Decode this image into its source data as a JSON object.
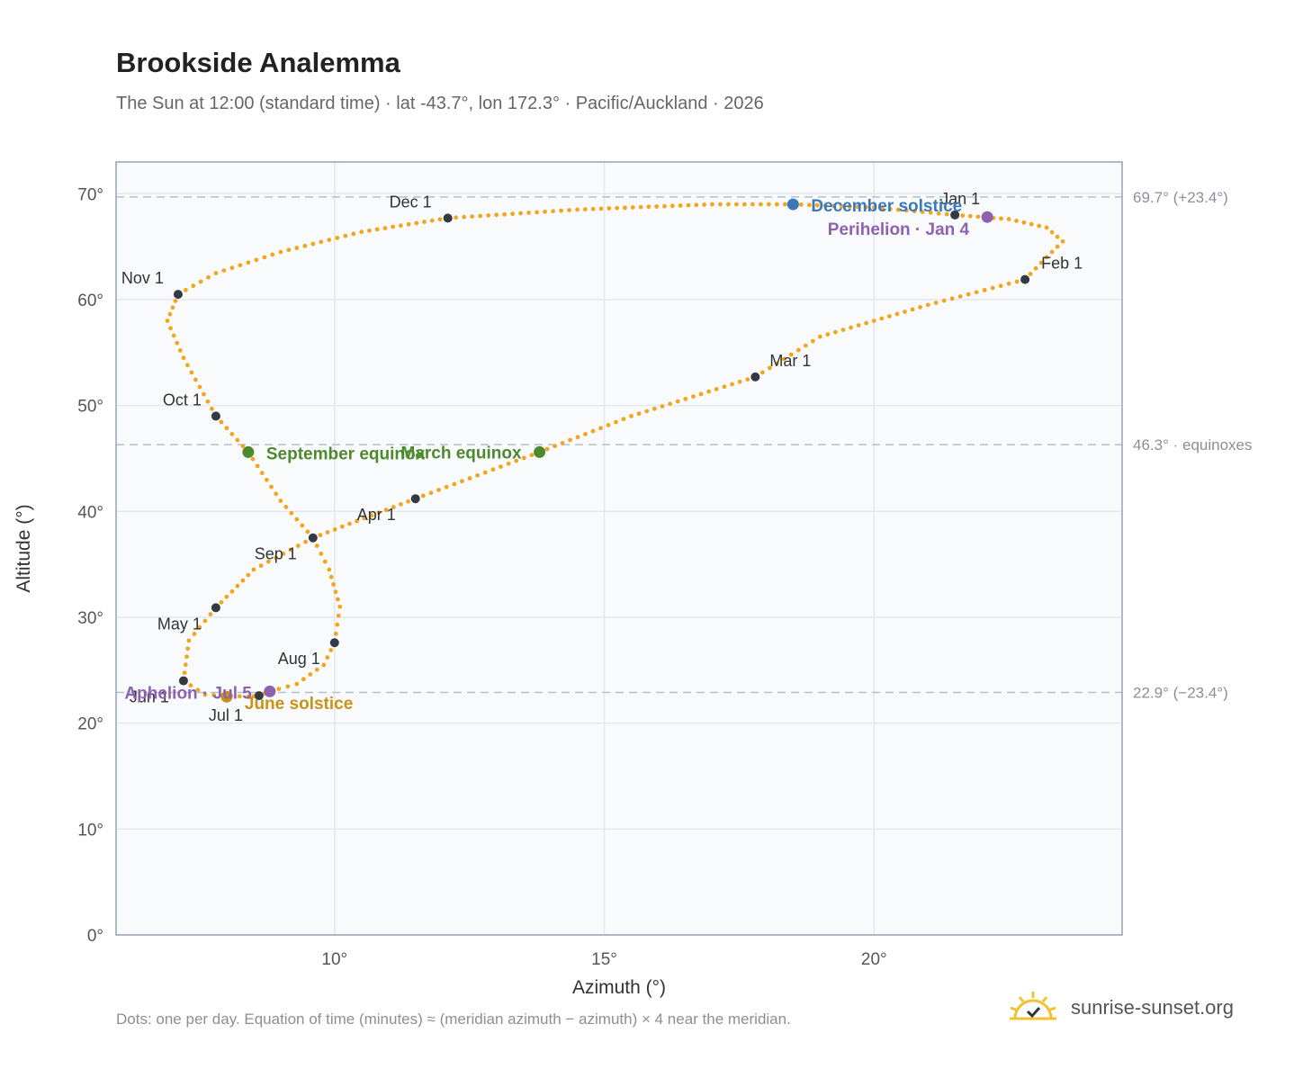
{
  "header": {
    "title": "Brookside Analemma",
    "subtitle": "The Sun at 12:00 (standard time) · lat -43.7°, lon 172.3° · Pacific/Auckland · 2026"
  },
  "footer": {
    "note": "Dots: one per day. Equation of time (minutes) ≈ (meridian azimuth − azimuth) × 4 near the meridian.",
    "brand": "sunrise-sunset.org"
  },
  "colors": {
    "curve": "#f2a51f",
    "month_marker": "#333a44",
    "solstice_dec": "#3a78b8",
    "solstice_jun": "#c79216",
    "equinox": "#4d8a2e",
    "apsis": "#8e62b0",
    "reference_line": "#b4bfcc",
    "plot_bg": "#f8fafc",
    "grid": "#e2e8ee"
  },
  "chart_data": {
    "type": "scatter",
    "xlabel": "Azimuth (°)",
    "ylabel": "Altitude (°)",
    "xlim": [
      5.95,
      24.6
    ],
    "ylim": [
      0,
      73
    ],
    "x_ticks": [
      10,
      15,
      20
    ],
    "x_tick_labels": [
      "10°",
      "15°",
      "20°"
    ],
    "y_ticks": [
      0,
      10,
      20,
      30,
      40,
      50,
      60,
      70
    ],
    "y_tick_labels": [
      "0°",
      "10°",
      "20°",
      "30°",
      "40°",
      "50°",
      "60°",
      "70°"
    ],
    "grid": true,
    "series": [
      {
        "kind": "daily_analemma_path",
        "points": [
          [
            21.5,
            68.0
          ],
          [
            22.5,
            67.6
          ],
          [
            23.2,
            66.8
          ],
          [
            23.5,
            65.5
          ],
          [
            23.2,
            64.0
          ],
          [
            22.8,
            61.9
          ],
          [
            21.0,
            59.5
          ],
          [
            19.0,
            56.5
          ],
          [
            17.8,
            52.7
          ],
          [
            15.5,
            49.0
          ],
          [
            13.8,
            45.6
          ],
          [
            11.5,
            41.2
          ],
          [
            9.6,
            37.5
          ],
          [
            8.5,
            34.5
          ],
          [
            7.8,
            30.9
          ],
          [
            7.3,
            27.8
          ],
          [
            7.2,
            24.0
          ],
          [
            7.6,
            22.7
          ],
          [
            8.4,
            22.5
          ],
          [
            8.6,
            22.6
          ],
          [
            8.8,
            23.0
          ],
          [
            9.3,
            23.7
          ],
          [
            9.8,
            25.5
          ],
          [
            10.0,
            27.6
          ],
          [
            10.1,
            31.0
          ],
          [
            9.9,
            34.5
          ],
          [
            9.6,
            37.5
          ],
          [
            9.0,
            41.0
          ],
          [
            8.4,
            45.6
          ],
          [
            7.8,
            49.0
          ],
          [
            7.2,
            54.5
          ],
          [
            6.9,
            58.0
          ],
          [
            7.1,
            60.5
          ],
          [
            7.8,
            62.5
          ],
          [
            9.0,
            64.5
          ],
          [
            10.5,
            66.4
          ],
          [
            12.1,
            67.7
          ],
          [
            14.5,
            68.5
          ],
          [
            17.0,
            69.0
          ],
          [
            18.5,
            69.0
          ],
          [
            20.0,
            68.7
          ],
          [
            21.5,
            68.0
          ]
        ]
      },
      {
        "kind": "month_markers",
        "points": [
          {
            "label": "Jan 1",
            "x": 21.5,
            "y": 68.0
          },
          {
            "label": "Feb 1",
            "x": 22.8,
            "y": 61.9
          },
          {
            "label": "Mar 1",
            "x": 17.8,
            "y": 52.7
          },
          {
            "label": "Apr 1",
            "x": 11.5,
            "y": 41.2
          },
          {
            "label": "May 1",
            "x": 7.8,
            "y": 30.9
          },
          {
            "label": "Jun 1",
            "x": 7.2,
            "y": 24.0
          },
          {
            "label": "Jul 1",
            "x": 8.6,
            "y": 22.6
          },
          {
            "label": "Aug 1",
            "x": 10.0,
            "y": 27.6
          },
          {
            "label": "Sep 1",
            "x": 9.6,
            "y": 37.5
          },
          {
            "label": "Oct 1",
            "x": 7.8,
            "y": 49.0
          },
          {
            "label": "Nov 1",
            "x": 7.1,
            "y": 60.5
          },
          {
            "label": "Dec 1",
            "x": 12.1,
            "y": 67.7
          }
        ]
      },
      {
        "kind": "events",
        "points": [
          {
            "label": "December solstice",
            "x": 18.5,
            "y": 69.0,
            "color_key": "solstice_dec"
          },
          {
            "label": "Perihelion · Jan 4",
            "x": 22.1,
            "y": 67.8,
            "color_key": "apsis"
          },
          {
            "label": "March equinox",
            "x": 13.8,
            "y": 45.6,
            "color_key": "equinox"
          },
          {
            "label": "September equinox",
            "x": 8.4,
            "y": 45.6,
            "color_key": "equinox"
          },
          {
            "label": "June solstice",
            "x": 8.0,
            "y": 22.5,
            "color_key": "solstice_jun"
          },
          {
            "label": "Aphelion · Jul 5",
            "x": 8.8,
            "y": 23.0,
            "color_key": "apsis"
          }
        ]
      }
    ],
    "reference_lines": [
      {
        "y": 69.7,
        "label": "69.7° (+23.4°)"
      },
      {
        "y": 46.3,
        "label": "46.3° · equinoxes"
      },
      {
        "y": 22.9,
        "label": "22.9° (−23.4°)"
      }
    ]
  }
}
